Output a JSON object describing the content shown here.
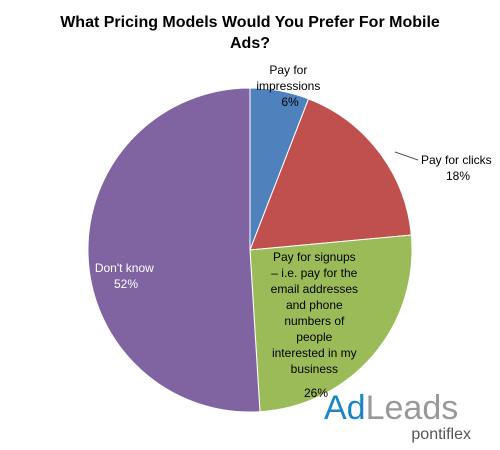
{
  "chart_data": {
    "type": "pie",
    "title": "What Pricing Models Would You Prefer For Mobile Ads?",
    "start_angle_deg": 0,
    "direction": "clockwise",
    "slices": [
      {
        "label": "Pay for impressions",
        "value": 6,
        "display": "6%",
        "color": "#4F81BD"
      },
      {
        "label": "Pay for clicks",
        "value": 18,
        "display": "18%",
        "color": "#C0504D"
      },
      {
        "label": "Pay for signups – i.e. pay for the email addresses and phone numbers of people interested in my business",
        "value": 26,
        "display": "26%",
        "color": "#9BBB59"
      },
      {
        "label": "Don't know",
        "value": 52,
        "display": "52%",
        "color": "#8064A2"
      }
    ]
  },
  "logo": {
    "ad": "Ad",
    "leads": "Leads",
    "sub": "pontiflex",
    "colors": {
      "ad": "#1a86c8",
      "leads": "#999999"
    }
  }
}
